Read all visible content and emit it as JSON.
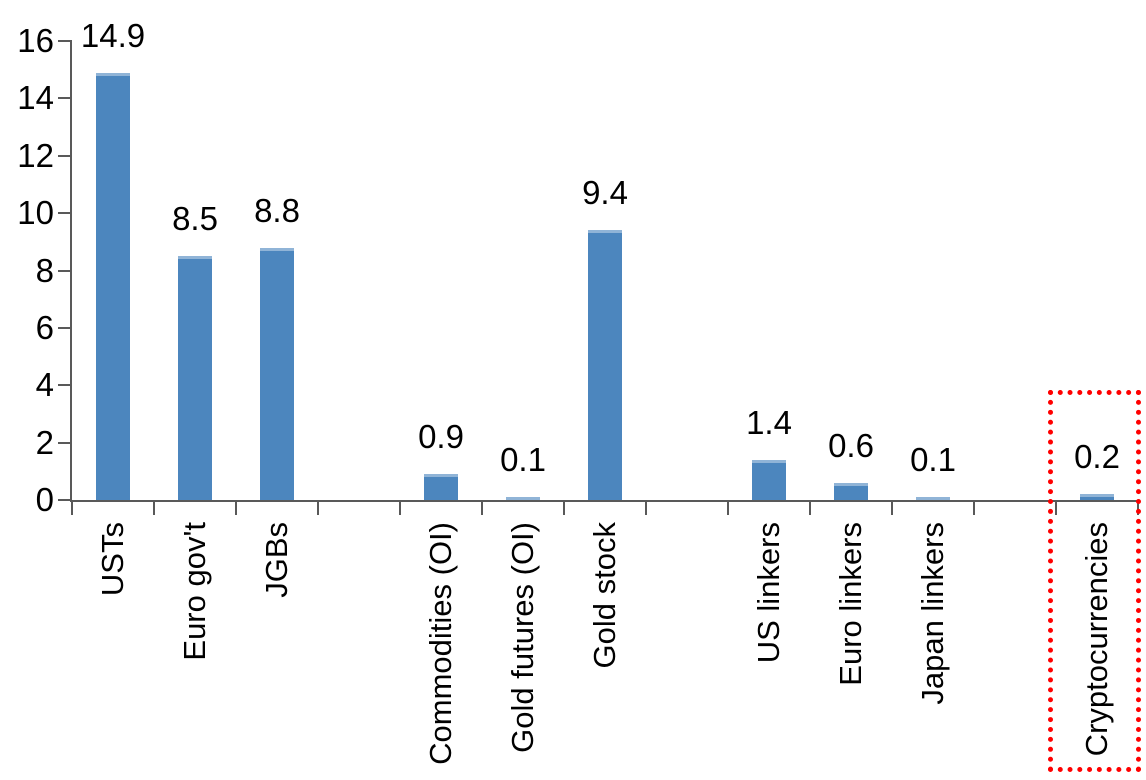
{
  "chart_data": {
    "type": "bar",
    "title": "",
    "xlabel": "",
    "ylabel": "",
    "categories": [
      "USTs",
      "Euro gov't",
      "JGBs",
      "Commodities (OI)",
      "Gold futures (OI)",
      "Gold stock",
      "US linkers",
      "Euro linkers",
      "Japan linkers",
      "Cryptocurrencies"
    ],
    "values": [
      14.9,
      8.5,
      8.8,
      0.9,
      0.1,
      9.4,
      1.4,
      0.6,
      0.1,
      0.2
    ],
    "value_labels": [
      "14.9",
      "8.5",
      "8.8",
      "0.9",
      "0.1",
      "9.4",
      "1.4",
      "0.6",
      "0.1",
      "0.2"
    ],
    "ytick_labels": [
      "0",
      "2",
      "4",
      "6",
      "8",
      "10",
      "12",
      "14",
      "16"
    ],
    "yticks": [
      0,
      2,
      4,
      6,
      8,
      10,
      12,
      14,
      16
    ],
    "ylim": [
      0,
      16
    ],
    "grid": false,
    "legend": false,
    "colors": {
      "bar": "#4C86BE",
      "axis": "#595959",
      "label": "#000000",
      "highlight_box": "#FF0000"
    },
    "layout": {
      "total_slots": 13,
      "category_slots": [
        0,
        1,
        2,
        4,
        5,
        6,
        8,
        9,
        10,
        12
      ],
      "gap_slots": [
        3,
        7,
        11
      ],
      "legend_position": "none"
    },
    "annotation": {
      "type": "dotted-box",
      "around_category": "Cryptocurrencies",
      "slot": 12,
      "color": "#FF0000"
    }
  }
}
